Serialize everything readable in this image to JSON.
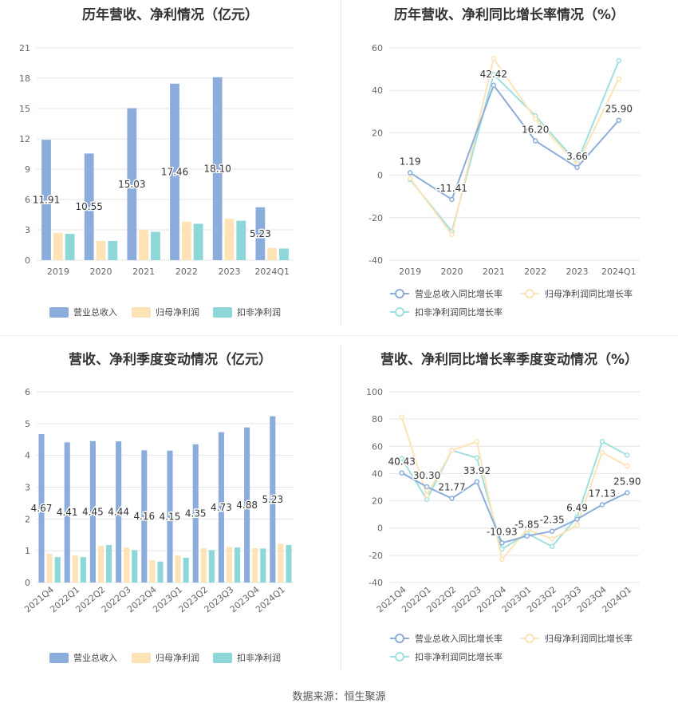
{
  "source": "数据来源：恒生聚源",
  "colors": {
    "revenue": "#8caddc",
    "parent_profit": "#fde3b6",
    "deducted_profit": "#8ed7d9",
    "rev_line": "#8caddc",
    "parent_line": "#fde3b6",
    "deducted_line": "#9fe0df"
  },
  "chart_data": [
    {
      "id": "annual-bar",
      "type": "bar",
      "title": "历年营收、净利情况（亿元）",
      "categories": [
        "2019",
        "2020",
        "2021",
        "2022",
        "2023",
        "2024Q1"
      ],
      "ylim": [
        0,
        21
      ],
      "yticks": [
        0,
        3,
        6,
        9,
        12,
        15,
        18,
        21
      ],
      "label_series": 0,
      "series": [
        {
          "name": "营业总收入",
          "color": "#8caddc",
          "values": [
            11.91,
            10.55,
            15.03,
            17.46,
            18.1,
            5.23
          ],
          "labels": [
            "11.91",
            "10.55",
            "15.03",
            "17.46",
            "18.10",
            "5.23"
          ]
        },
        {
          "name": "归母净利润",
          "color": "#fde3b6",
          "values": [
            2.7,
            1.9,
            3.0,
            3.8,
            4.1,
            1.2
          ]
        },
        {
          "name": "扣非净利润",
          "color": "#8ed7d9",
          "values": [
            2.6,
            1.9,
            2.8,
            3.6,
            3.9,
            1.15
          ]
        }
      ]
    },
    {
      "id": "annual-line",
      "type": "line",
      "title": "历年营收、净利同比增长率情况（%）",
      "categories": [
        "2019",
        "2020",
        "2021",
        "2022",
        "2023",
        "2024Q1"
      ],
      "ylim": [
        -40,
        60
      ],
      "yticks": [
        -40,
        -20,
        0,
        20,
        40,
        60
      ],
      "label_series": 0,
      "series": [
        {
          "name": "营业总收入同比增长率",
          "color": "#8caddc",
          "values": [
            1.19,
            -11.41,
            42.42,
            16.2,
            3.66,
            25.9
          ],
          "labels": [
            "1.19",
            "-11.41",
            "42.42",
            "16.20",
            "3.66",
            "25.90"
          ]
        },
        {
          "name": "归母净利润同比增长率",
          "color": "#fde3b6",
          "values": [
            -1.5,
            -28.0,
            55.0,
            26.5,
            5.0,
            45.5
          ]
        },
        {
          "name": "扣非净利润同比增长率",
          "color": "#9fe0df",
          "values": [
            -2.0,
            -26.5,
            47.5,
            28.0,
            6.0,
            54.0
          ]
        }
      ]
    },
    {
      "id": "quarter-bar",
      "type": "bar",
      "title": "营收、净利季度变动情况（亿元）",
      "categories": [
        "2021Q4",
        "2022Q1",
        "2022Q2",
        "2022Q3",
        "2022Q4",
        "2023Q1",
        "2023Q2",
        "2023Q3",
        "2023Q4",
        "2024Q1"
      ],
      "ylim": [
        0,
        6
      ],
      "yticks": [
        0,
        1,
        2,
        3,
        4,
        5,
        6
      ],
      "label_series": 0,
      "series": [
        {
          "name": "营业总收入",
          "color": "#8caddc",
          "values": [
            4.67,
            4.41,
            4.45,
            4.44,
            4.16,
            4.15,
            4.35,
            4.73,
            4.88,
            5.23
          ],
          "labels": [
            "4.67",
            "4.41",
            "4.45",
            "4.44",
            "4.16",
            "4.15",
            "4.35",
            "4.73",
            "4.88",
            "5.23"
          ]
        },
        {
          "name": "归母净利润",
          "color": "#fde3b6",
          "values": [
            0.9,
            0.85,
            1.15,
            1.1,
            0.7,
            0.85,
            1.08,
            1.12,
            1.08,
            1.22
          ]
        },
        {
          "name": "扣非净利润",
          "color": "#8ed7d9",
          "values": [
            0.8,
            0.8,
            1.18,
            1.02,
            0.66,
            0.78,
            1.02,
            1.1,
            1.07,
            1.18
          ]
        }
      ]
    },
    {
      "id": "quarter-line",
      "type": "line",
      "title": "营收、净利同比增长率季度变动情况（%）",
      "categories": [
        "2021Q4",
        "2022Q1",
        "2022Q2",
        "2022Q3",
        "2022Q4",
        "2023Q1",
        "2023Q2",
        "2023Q3",
        "2023Q4",
        "2024Q1"
      ],
      "ylim": [
        -40,
        100
      ],
      "yticks": [
        -40,
        -20,
        0,
        20,
        40,
        60,
        80,
        100
      ],
      "label_series": 0,
      "series": [
        {
          "name": "营业总收入同比增长率",
          "color": "#8caddc",
          "values": [
            40.43,
            30.3,
            21.77,
            33.92,
            -10.93,
            -5.85,
            -2.35,
            6.49,
            17.13,
            25.9
          ],
          "labels": [
            "40.43",
            "30.30",
            "21.77",
            "33.92",
            "-10.93",
            "-5.85",
            "-2.35",
            "6.49",
            "17.13",
            "25.90"
          ]
        },
        {
          "name": "归母净利润同比增长率",
          "color": "#fde3b6",
          "values": [
            81.5,
            24.0,
            57.0,
            63.5,
            -23.0,
            -1.0,
            -8.0,
            2.0,
            55.5,
            45.5
          ]
        },
        {
          "name": "扣非净利润同比增长率",
          "color": "#9fe0df",
          "values": [
            51.0,
            21.0,
            57.0,
            51.5,
            -15.5,
            -4.0,
            -13.5,
            8.0,
            63.5,
            53.5
          ]
        }
      ]
    }
  ]
}
